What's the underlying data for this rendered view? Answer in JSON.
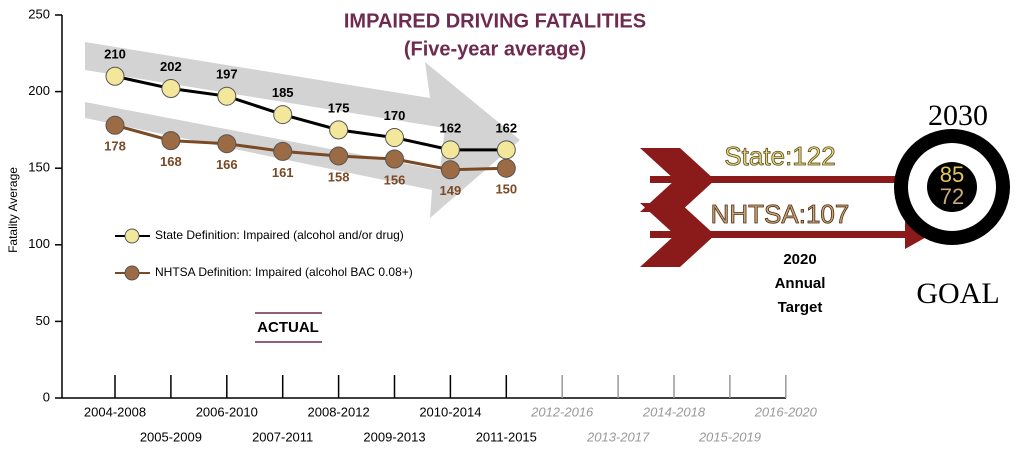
{
  "chart_data": {
    "type": "line",
    "title": "IMPAIRED DRIVING FATALITIES",
    "subtitle": "(Five-year average)",
    "y_label": "Fatality Average",
    "categories": [
      "2004-2008",
      "2005-2009",
      "2006-2010",
      "2007-2011",
      "2008-2012",
      "2009-2013",
      "2010-2014",
      "2011-2015",
      "2012-2016",
      "2013-2017",
      "2014-2018",
      "2015-2019",
      "2016-2020"
    ],
    "series": [
      {
        "name": "State Definition: Impaired (alcohol and/or drug)",
        "color": "#000000",
        "marker_color": "#f2e79a",
        "label_color": "#000000",
        "values": [
          210,
          202,
          197,
          185,
          175,
          170,
          162,
          162,
          null,
          null,
          null,
          null,
          null
        ]
      },
      {
        "name": "NHTSA Definition: Impaired (alcohol BAC 0.08+)",
        "color": "#7a4a26",
        "marker_color": "#9c6b43",
        "label_color": "#7a4a26",
        "values": [
          178,
          168,
          166,
          161,
          158,
          156,
          149,
          150,
          null,
          null,
          null,
          null,
          null
        ]
      }
    ],
    "ylim": [
      0,
      250
    ],
    "yticks": [
      0,
      50,
      100,
      150,
      200,
      250
    ],
    "annotation": "ACTUAL",
    "target": {
      "year": "2030",
      "goal": "GOAL",
      "state": "State:122",
      "nhtsa": "NHTSA:107",
      "annual": [
        "2020",
        "Annual",
        "Target"
      ],
      "state_goal": "85",
      "nhtsa_goal": "72"
    }
  }
}
